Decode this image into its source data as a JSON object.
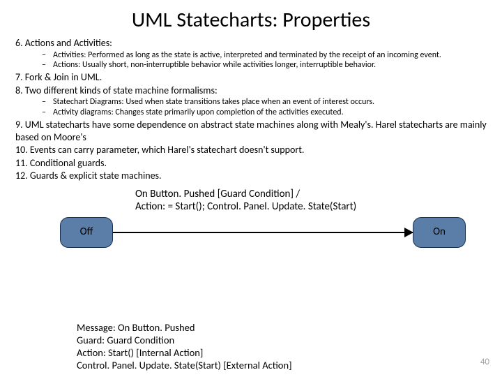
{
  "title": "UML Statecharts: Properties",
  "items": {
    "i6": "6. Actions and Activities:",
    "i6a": "Activities: Performed as long as the state is active, interpreted and terminated by the receipt of an incoming event.",
    "i6b": "Actions: Usually short, non-interruptible behavior while activities longer, interruptible behavior.",
    "i7": "7. Fork & Join in UML.",
    "i8": "8. Two different kinds of state machine formalisms:",
    "i8a": "Statechart Diagrams: Used when state transitions takes place when an event of interest occurs.",
    "i8b": "Activity diagrams: Changes state primarily upon completion of the activities executed.",
    "i9": "9. UML statecharts have some dependence on abstract state machines along with Mealy's. Harel statecharts are mainly based on Moore's",
    "i10": "10. Events can carry parameter, which Harel's statechart doesn't support.",
    "i11": "11. Conditional guards.",
    "i12": "12. Guards & explicit state machines."
  },
  "diagram": {
    "off": "Off",
    "on": "On",
    "label1": "On Button. Pushed [Guard Condition] /",
    "label2": "Action: = Start(); Control. Panel. Update. State(Start)",
    "colors": {
      "state_fill": "#5b7ea8",
      "state_border": "#1a3050"
    }
  },
  "legend": {
    "l1": "Message: On Button. Pushed",
    "l2": "Guard: Guard Condition",
    "l3": "Action: Start() [Internal Action]",
    "l4": "Control. Panel. Update. State(Start) [External Action]"
  },
  "pageNumber": "40"
}
